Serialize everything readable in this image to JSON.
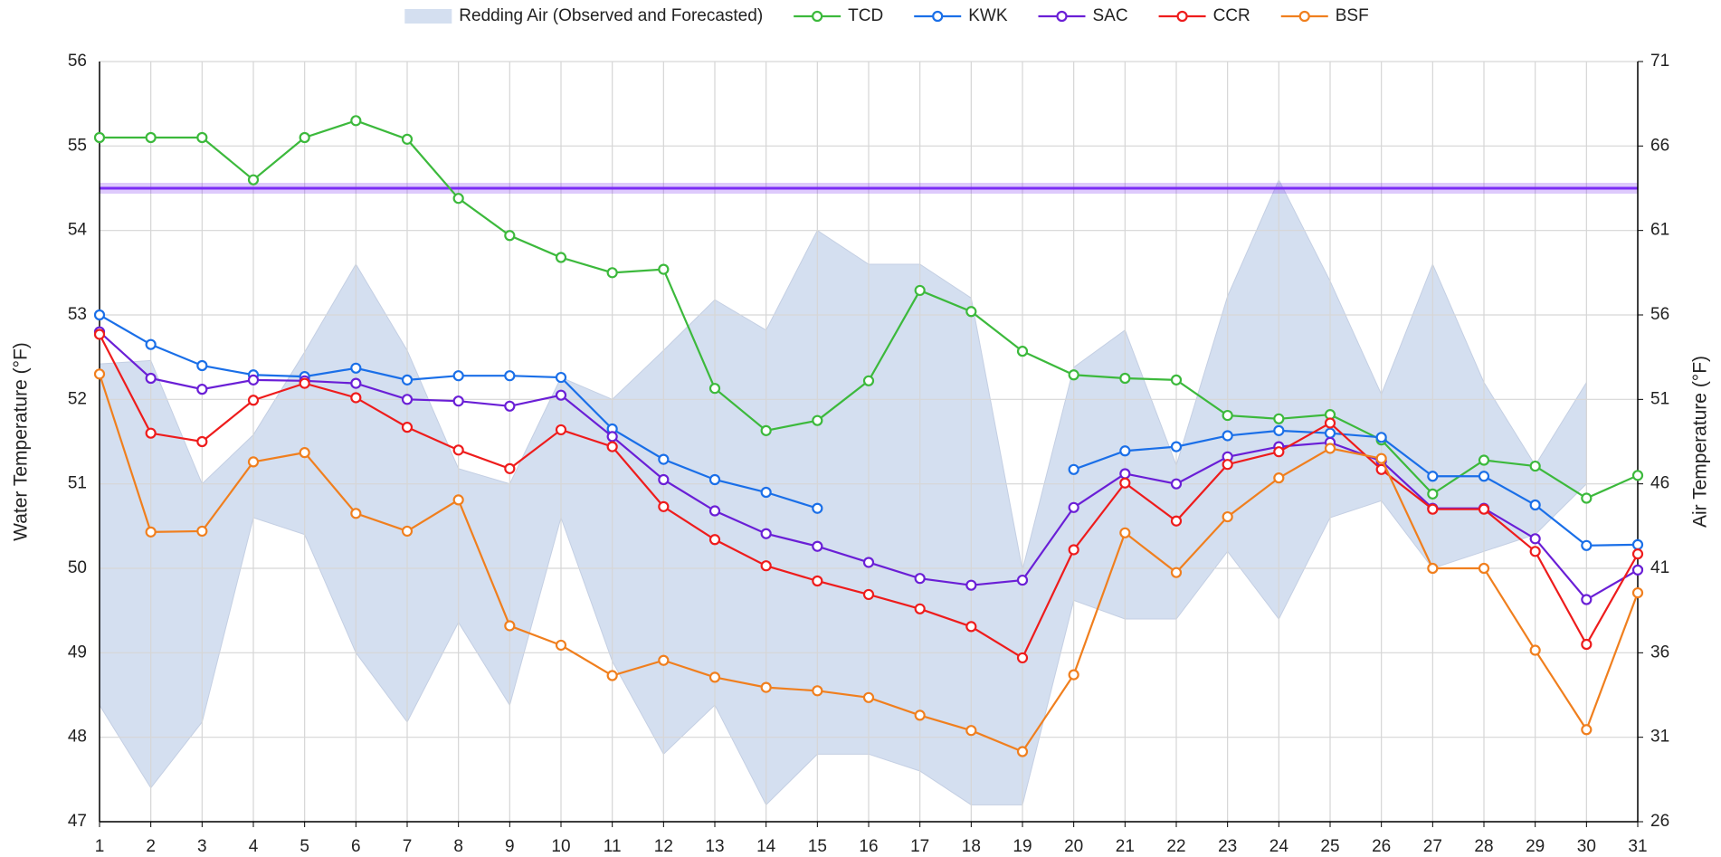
{
  "chart_data": {
    "type": "line",
    "ylabel": "Water Temperature (°F)",
    "y2label": "Air Temperature (°F)",
    "x": [
      1,
      2,
      3,
      4,
      5,
      6,
      7,
      8,
      9,
      10,
      11,
      12,
      13,
      14,
      15,
      16,
      17,
      18,
      19,
      20,
      21,
      22,
      23,
      24,
      25,
      26,
      27,
      28,
      29,
      30,
      31
    ],
    "xlim": [
      1,
      31
    ],
    "xticks": [
      1,
      2,
      3,
      4,
      5,
      6,
      7,
      8,
      9,
      10,
      11,
      12,
      13,
      14,
      15,
      16,
      17,
      18,
      19,
      20,
      21,
      22,
      23,
      24,
      25,
      26,
      27,
      28,
      29,
      30,
      31
    ],
    "ylim": [
      47,
      56
    ],
    "yticks": [
      47,
      48,
      49,
      50,
      51,
      52,
      53,
      54,
      55,
      56
    ],
    "y2lim": [
      26,
      71
    ],
    "y2ticks": [
      26,
      31,
      36,
      41,
      46,
      51,
      56,
      61,
      66,
      71
    ],
    "grid": true,
    "legend": "top",
    "band": {
      "name": "Redding Air (Observed and Forecasted)",
      "color": "#d4dff0",
      "axis": "y2",
      "upper": [
        53.1,
        53.3,
        46.0,
        48.9,
        53.8,
        59.0,
        53.9,
        46.9,
        46.0,
        52.3,
        51.0,
        53.9,
        56.9,
        55.1,
        61.0,
        59.0,
        59.0,
        57.0,
        40.9,
        52.9,
        55.1,
        47.1,
        57.1,
        64.0,
        58.0,
        51.3,
        59.0,
        52.0,
        47.1,
        52.0,
        null
      ],
      "lower": [
        32.9,
        28.0,
        31.9,
        44.0,
        43.0,
        36.0,
        31.9,
        37.8,
        32.9,
        44.0,
        35.5,
        30.0,
        32.9,
        27.0,
        30.0,
        30.0,
        29.0,
        27.0,
        27.0,
        39.1,
        38.0,
        38.0,
        42.0,
        38.0,
        44.0,
        45.0,
        41.0,
        42.0,
        43.0,
        46.0,
        null
      ]
    },
    "reference_line": {
      "value": 54.5,
      "color": "#7b2cf5"
    },
    "series": [
      {
        "name": "TCD",
        "color": "#3cb93c",
        "values": [
          55.1,
          55.1,
          55.1,
          54.6,
          55.1,
          55.3,
          55.08,
          54.38,
          53.94,
          53.68,
          53.5,
          53.54,
          52.13,
          51.63,
          51.75,
          52.22,
          53.29,
          53.04,
          52.57,
          52.29,
          52.25,
          52.23,
          51.81,
          51.77,
          51.82,
          51.52,
          50.88,
          51.28,
          51.21,
          50.83,
          51.1
        ]
      },
      {
        "name": "KWK",
        "color": "#1a6fe8",
        "values": [
          53.0,
          52.65,
          52.4,
          52.29,
          52.27,
          52.37,
          52.23,
          52.28,
          52.28,
          52.26,
          51.65,
          51.29,
          51.05,
          50.9,
          50.71,
          null,
          null,
          null,
          null,
          51.17,
          51.39,
          51.44,
          51.57,
          51.63,
          51.6,
          51.55,
          51.09,
          51.09,
          50.75,
          50.27,
          50.28
        ]
      },
      {
        "name": "SAC",
        "color": "#6a1fd6",
        "values": [
          52.8,
          52.25,
          52.12,
          52.23,
          52.22,
          52.19,
          52.0,
          51.98,
          51.92,
          52.05,
          51.56,
          51.05,
          50.68,
          50.41,
          50.26,
          50.07,
          49.88,
          49.8,
          49.86,
          50.72,
          51.12,
          51.0,
          51.32,
          51.44,
          51.49,
          51.27,
          50.71,
          50.71,
          50.35,
          49.63,
          49.98
        ]
      },
      {
        "name": "CCR",
        "color": "#ee1c1c",
        "values": [
          52.77,
          51.6,
          51.5,
          51.99,
          52.19,
          52.02,
          51.67,
          51.4,
          51.18,
          51.64,
          51.44,
          50.73,
          50.34,
          50.03,
          49.85,
          49.69,
          49.52,
          49.31,
          48.94,
          50.22,
          51.01,
          50.56,
          51.23,
          51.38,
          51.72,
          51.17,
          50.7,
          50.7,
          50.2,
          49.1,
          50.17
        ]
      },
      {
        "name": "BSF",
        "color": "#f07f1e",
        "values": [
          52.3,
          50.43,
          50.44,
          51.26,
          51.37,
          50.65,
          50.44,
          50.81,
          49.32,
          49.09,
          48.73,
          48.91,
          48.71,
          48.59,
          48.55,
          48.47,
          48.26,
          48.08,
          47.83,
          48.74,
          50.42,
          49.95,
          50.61,
          51.07,
          51.42,
          51.3,
          50.0,
          50.0,
          49.03,
          48.09,
          49.71
        ]
      }
    ]
  }
}
